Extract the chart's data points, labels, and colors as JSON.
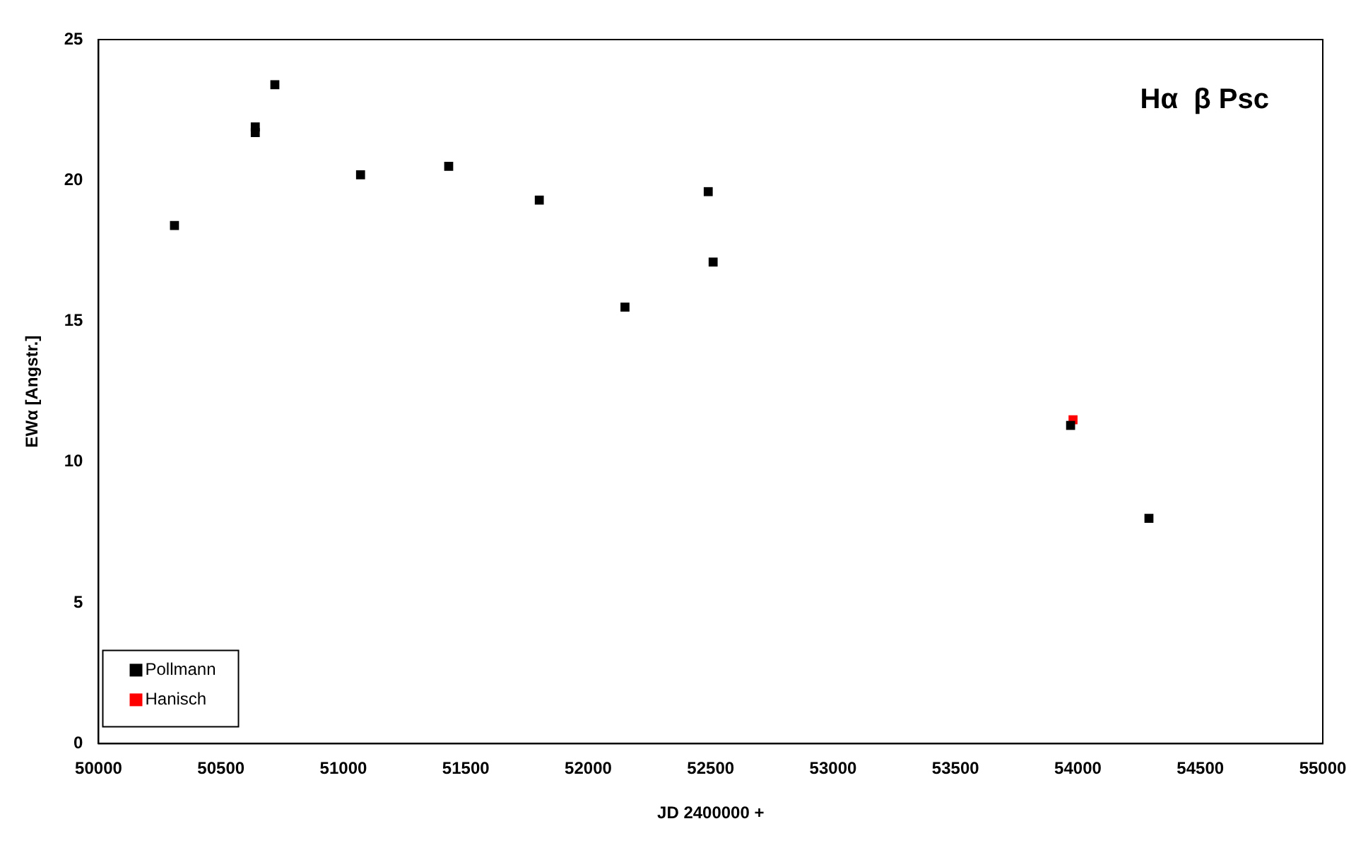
{
  "chart_data": {
    "type": "scatter",
    "title": "Hα  β Psc",
    "xlabel": "JD 2400000 +",
    "ylabel": "EWα [Angstr.]",
    "series": [
      {
        "name": "Pollmann",
        "color": "#000000",
        "x": [
          50310,
          50640,
          50640,
          50720,
          51070,
          51430,
          51800,
          52150,
          52490,
          52510,
          53970,
          54290
        ],
        "values": [
          18.4,
          21.9,
          21.7,
          23.4,
          20.2,
          20.5,
          19.3,
          15.5,
          19.6,
          17.1,
          11.3,
          8.0
        ]
      },
      {
        "name": "Hanisch",
        "color": "#ff0000",
        "x": [
          53980
        ],
        "values": [
          11.5
        ]
      }
    ],
    "xlim": [
      50000,
      55000
    ],
    "xticks": [
      50000,
      50500,
      51000,
      51500,
      52000,
      52500,
      53000,
      53500,
      54000,
      54500,
      55000
    ],
    "ylim": [
      0,
      25
    ],
    "yticks": [
      0,
      5,
      10,
      15,
      20,
      25
    ],
    "grid": false,
    "legend": "bottom left",
    "marker": "square"
  }
}
